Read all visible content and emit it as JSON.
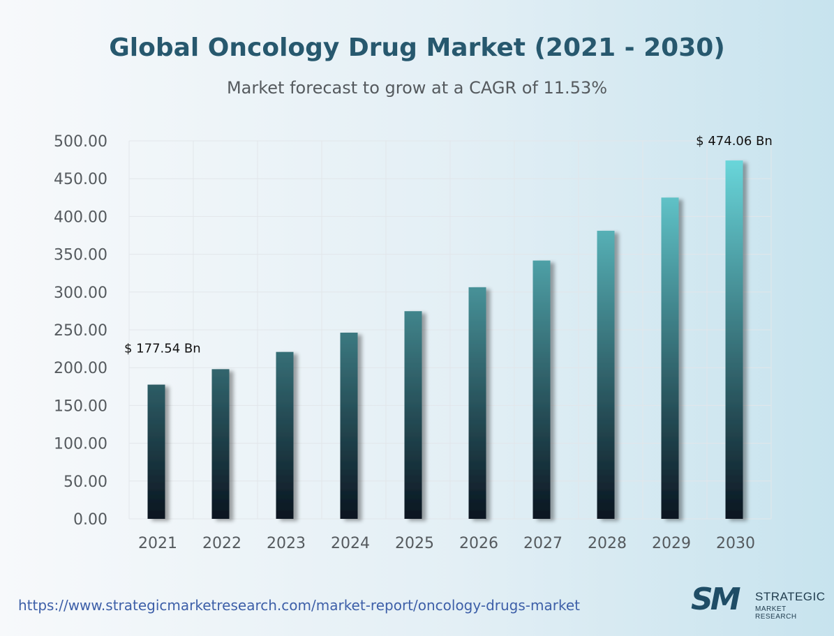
{
  "chart_data": {
    "type": "bar",
    "title": "Global Oncology Drug Market (2021 - 2030)",
    "subtitle": "Market forecast to grow at a CAGR of 11.53%",
    "categories": [
      "2021",
      "2022",
      "2023",
      "2024",
      "2025",
      "2026",
      "2027",
      "2028",
      "2029",
      "2030"
    ],
    "values": [
      177.54,
      198.0,
      220.8,
      246.3,
      274.7,
      306.4,
      341.7,
      381.1,
      425.0,
      474.06
    ],
    "ylim": [
      0,
      500
    ],
    "yticks": [
      "0.00",
      "50.00",
      "100.00",
      "150.00",
      "200.00",
      "250.00",
      "300.00",
      "350.00",
      "400.00",
      "450.00",
      "500.00"
    ],
    "grid": true,
    "annotations": [
      {
        "category": "2021",
        "text": "$ 177.54 Bn"
      },
      {
        "category": "2030",
        "text": "$ 474.06 Bn"
      }
    ],
    "colors": {
      "bar_top": "#6ee0e4",
      "bar_bottom": "#0a1520",
      "grid": "#e2e6ea"
    }
  },
  "footer": {
    "url": "https://www.strategicmarketresearch.com/market-report/oncology-drugs-market"
  },
  "logo": {
    "mark": "SM",
    "line1": "STRATEGIC",
    "line2": "MARKET RESEARCH"
  }
}
